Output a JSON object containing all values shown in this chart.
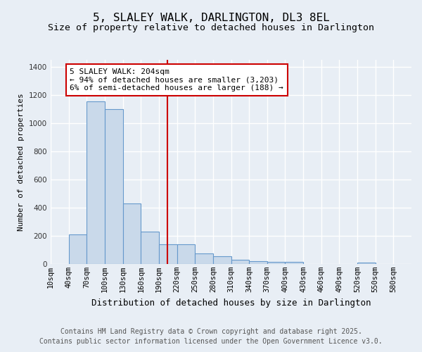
{
  "title": "5, SLALEY WALK, DARLINGTON, DL3 8EL",
  "subtitle": "Size of property relative to detached houses in Darlington",
  "xlabel": "Distribution of detached houses by size in Darlington",
  "ylabel": "Number of detached properties",
  "bin_edges": [
    10,
    40,
    70,
    100,
    130,
    160,
    190,
    220,
    250,
    280,
    310,
    340,
    370,
    400,
    430,
    460,
    490,
    520,
    550,
    580,
    610
  ],
  "bar_heights": [
    0,
    210,
    1155,
    1100,
    430,
    230,
    140,
    140,
    75,
    55,
    30,
    20,
    15,
    15,
    0,
    0,
    0,
    12,
    0,
    0
  ],
  "bar_color": "#c9d9ea",
  "bar_edge_color": "#6699cc",
  "property_line_x": 204,
  "property_line_color": "#cc0000",
  "annotation_text": "5 SLALEY WALK: 204sqm\n← 94% of detached houses are smaller (3,203)\n6% of semi-detached houses are larger (188) →",
  "annotation_box_facecolor": "#ffffff",
  "annotation_box_edgecolor": "#cc0000",
  "ylim": [
    0,
    1450
  ],
  "yticks": [
    0,
    200,
    400,
    600,
    800,
    1000,
    1200,
    1400
  ],
  "fig_facecolor": "#e8eef5",
  "axes_facecolor": "#e8eef5",
  "grid_color": "#ffffff",
  "footer_line1": "Contains HM Land Registry data © Crown copyright and database right 2025.",
  "footer_line2": "Contains public sector information licensed under the Open Government Licence v3.0.",
  "title_fontsize": 11.5,
  "subtitle_fontsize": 9.5,
  "xlabel_fontsize": 9,
  "ylabel_fontsize": 8,
  "tick_fontsize": 7.5,
  "annotation_fontsize": 8,
  "footer_fontsize": 7
}
